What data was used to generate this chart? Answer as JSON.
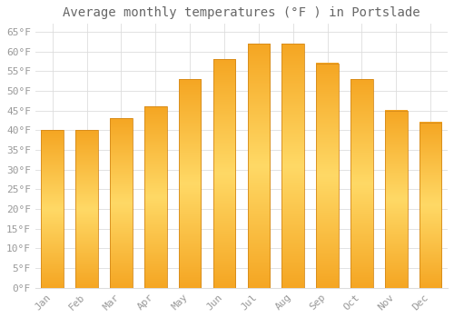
{
  "title": "Average monthly temperatures (°F ) in Portslade",
  "months": [
    "Jan",
    "Feb",
    "Mar",
    "Apr",
    "May",
    "Jun",
    "Jul",
    "Aug",
    "Sep",
    "Oct",
    "Nov",
    "Dec"
  ],
  "values": [
    40,
    40,
    43,
    46,
    53,
    58,
    62,
    62,
    57,
    53,
    45,
    42
  ],
  "bar_color_center": "#FFD966",
  "bar_color_edge": "#F5A623",
  "bar_outline_color": "#D4891A",
  "background_color": "#FFFFFF",
  "grid_color": "#DDDDDD",
  "text_color": "#999999",
  "title_color": "#666666",
  "ylim": [
    0,
    67
  ],
  "yticks": [
    0,
    5,
    10,
    15,
    20,
    25,
    30,
    35,
    40,
    45,
    50,
    55,
    60,
    65
  ],
  "title_fontsize": 10,
  "tick_fontsize": 8,
  "bar_width": 0.65
}
